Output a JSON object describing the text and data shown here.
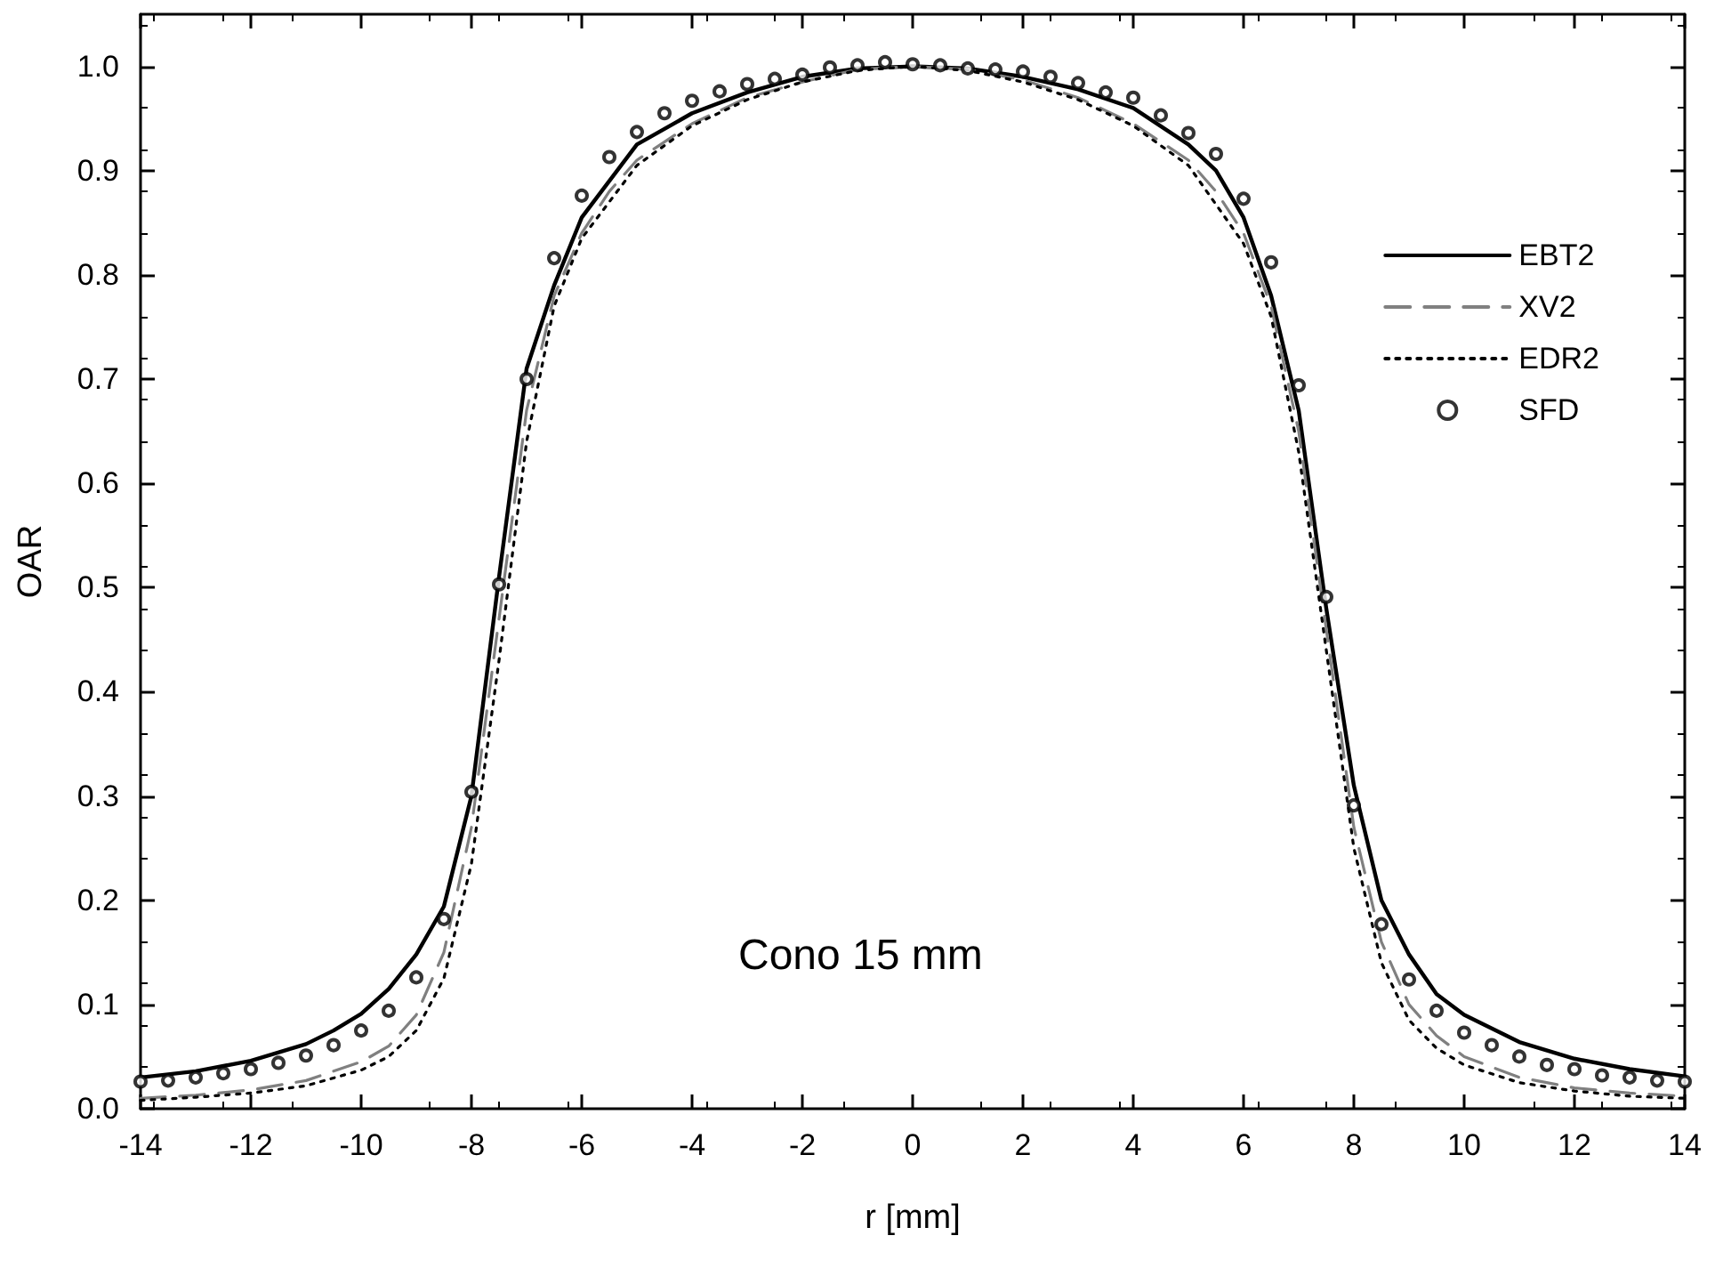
{
  "chart_data": {
    "type": "line",
    "xlabel": "r [mm]",
    "ylabel": "OAR",
    "annotations": [
      "Cono 15 mm"
    ],
    "xlim": [
      -14,
      14
    ],
    "xticks": [
      -14,
      -12,
      -10,
      -8,
      -6,
      -4,
      -2,
      0,
      2,
      4,
      6,
      8,
      10,
      12,
      14
    ],
    "ylim": [
      0,
      1.05
    ],
    "yticks": [
      {
        "value": 0,
        "label": "0.0"
      },
      {
        "value": 0.1,
        "label": "0.1"
      },
      {
        "value": 0.2,
        "label": "0.2"
      },
      {
        "value": 0.3,
        "label": "0.3"
      },
      {
        "value": 0.4,
        "label": "0.4"
      },
      {
        "value": 0.5,
        "label": "0.5"
      },
      {
        "value": 0.6,
        "label": "0.6"
      },
      {
        "value": 0.7,
        "label": "0.7"
      },
      {
        "value": 0.8,
        "label": "0.8"
      },
      {
        "value": 0.9,
        "label": "0.9"
      },
      {
        "value": 1,
        "label": "1.0"
      }
    ],
    "grid": false,
    "legend": "top right",
    "series": [
      {
        "name": "EBT2",
        "type": "line",
        "color": "#000000",
        "line_style": "solid",
        "marker": "none",
        "x": [
          -14,
          -13,
          -12,
          -11,
          -10.5,
          -10,
          -9.5,
          -9,
          -8.5,
          -8,
          -7.5,
          -7,
          -6.5,
          -6,
          -5,
          -4,
          -3,
          -2,
          -1,
          0,
          1,
          2,
          3,
          4,
          5,
          5.5,
          6,
          6.5,
          7,
          7.5,
          8,
          8.5,
          9,
          9.5,
          10,
          11,
          12,
          13,
          14
        ],
        "values": [
          0.03,
          0.036,
          0.046,
          0.062,
          0.075,
          0.091,
          0.115,
          0.148,
          0.194,
          0.3,
          0.51,
          0.71,
          0.79,
          0.855,
          0.925,
          0.955,
          0.975,
          0.99,
          0.998,
          1.0,
          0.998,
          0.99,
          0.978,
          0.96,
          0.925,
          0.9,
          0.855,
          0.78,
          0.67,
          0.48,
          0.31,
          0.2,
          0.148,
          0.11,
          0.09,
          0.064,
          0.048,
          0.038,
          0.031
        ]
      },
      {
        "name": "XV2",
        "type": "line",
        "color": "#808080",
        "line_style": "dashed",
        "marker": "none",
        "x": [
          -14,
          -13,
          -12,
          -11,
          -10,
          -9.5,
          -9,
          -8.5,
          -8,
          -7.5,
          -7,
          -6.5,
          -6,
          -5.5,
          -5,
          -4,
          -3,
          -2,
          -1,
          0,
          1,
          2,
          3,
          4,
          5,
          5.5,
          6,
          6.5,
          7,
          7.5,
          8,
          8.5,
          9,
          9.5,
          10,
          11,
          12,
          13,
          14
        ],
        "values": [
          0.01,
          0.013,
          0.018,
          0.027,
          0.045,
          0.06,
          0.09,
          0.15,
          0.27,
          0.47,
          0.67,
          0.78,
          0.84,
          0.88,
          0.91,
          0.945,
          0.97,
          0.985,
          0.997,
          1.0,
          0.997,
          0.987,
          0.97,
          0.945,
          0.91,
          0.88,
          0.84,
          0.77,
          0.65,
          0.46,
          0.27,
          0.16,
          0.1,
          0.07,
          0.05,
          0.03,
          0.02,
          0.015,
          0.012
        ]
      },
      {
        "name": "EDR2",
        "type": "line",
        "color": "#000000",
        "line_style": "dotted",
        "marker": "none",
        "x": [
          -14,
          -13,
          -12,
          -11,
          -10,
          -9.5,
          -9,
          -8.5,
          -8,
          -7.5,
          -7,
          -6.5,
          -6,
          -5,
          -4,
          -3,
          -2,
          -1,
          0,
          1,
          2,
          3,
          4,
          5,
          6,
          6.5,
          7,
          7.5,
          8,
          8.5,
          9,
          9.5,
          10,
          11,
          12,
          13,
          14
        ],
        "values": [
          0.008,
          0.011,
          0.015,
          0.022,
          0.037,
          0.05,
          0.075,
          0.125,
          0.235,
          0.43,
          0.64,
          0.77,
          0.835,
          0.905,
          0.943,
          0.968,
          0.985,
          0.996,
          1.0,
          0.996,
          0.985,
          0.968,
          0.943,
          0.905,
          0.83,
          0.76,
          0.63,
          0.44,
          0.25,
          0.14,
          0.085,
          0.058,
          0.042,
          0.025,
          0.017,
          0.012,
          0.01
        ]
      },
      {
        "name": "SFD",
        "type": "scatter",
        "color": "#000000",
        "marker": "circle",
        "x": [
          -14,
          -13.5,
          -13,
          -12.5,
          -12,
          -11.5,
          -11,
          -10.5,
          -10,
          -9.5,
          -9,
          -8.5,
          -8,
          -7.5,
          -7,
          -6.5,
          -6,
          -5.5,
          -5,
          -4.5,
          -4,
          -3.5,
          -3,
          -2.5,
          -2,
          -1.5,
          -1,
          -0.5,
          0,
          0.5,
          1,
          1.5,
          2,
          2.5,
          3,
          3.5,
          4,
          4.5,
          5,
          5.5,
          6,
          6.5,
          7,
          7.5,
          8,
          8.5,
          9,
          9.5,
          10,
          10.5,
          11,
          11.5,
          12,
          12.5,
          13,
          13.5,
          14
        ],
        "values": [
          0.026,
          0.027,
          0.03,
          0.034,
          0.038,
          0.044,
          0.051,
          0.061,
          0.075,
          0.094,
          0.126,
          0.182,
          0.304,
          0.503,
          0.7,
          0.816,
          0.876,
          0.913,
          0.937,
          0.955,
          0.967,
          0.976,
          0.983,
          0.988,
          0.992,
          0.999,
          1.001,
          1.004,
          1.002,
          1.001,
          0.998,
          0.997,
          0.995,
          0.99,
          0.984,
          0.975,
          0.97,
          0.953,
          0.936,
          0.916,
          0.873,
          0.812,
          0.694,
          0.491,
          0.291,
          0.177,
          0.124,
          0.094,
          0.073,
          0.061,
          0.05,
          0.042,
          0.038,
          0.032,
          0.03,
          0.027,
          0.026
        ]
      }
    ]
  }
}
